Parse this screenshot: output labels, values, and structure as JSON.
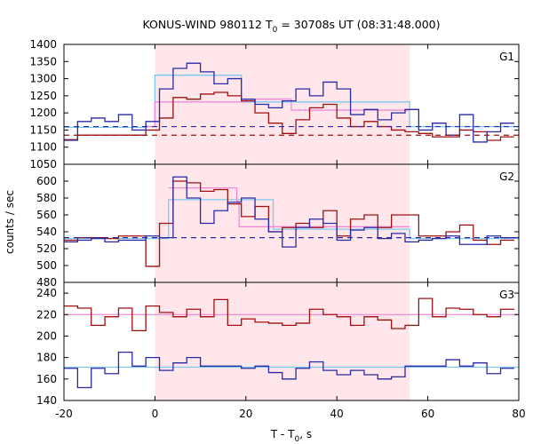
{
  "chart_data": {
    "type": "step",
    "title_main": "KONUS-WIND 980112 T",
    "title_sub": "0",
    "title_rest": " = 30708s UT (08:31:48.000)",
    "xlabel_main": "T - T",
    "xlabel_sub": "0",
    "xlabel_rest": ", s",
    "ylabel": "counts / sec",
    "xlim": [
      -20,
      80
    ],
    "xticks": [
      -20,
      0,
      20,
      40,
      60,
      80
    ],
    "shaded_interval": [
      0,
      56
    ],
    "colors": {
      "red_series": "#a01010",
      "blue_series": "#2a2aa8",
      "light_blue_fit": "#7ec8ec",
      "pink_fit": "#f08ad8",
      "shade": "#ffe6ea"
    },
    "panels": [
      {
        "label": "G1",
        "ylim": [
          1050,
          1400
        ],
        "yticks": [
          1050,
          1100,
          1150,
          1200,
          1250,
          1300,
          1350,
          1400
        ],
        "red": {
          "edges": [
            -20,
            -17,
            -14,
            -11,
            -8,
            -5,
            -2,
            1,
            4,
            7,
            10,
            13,
            16,
            19,
            22,
            25,
            28,
            31,
            34,
            37,
            40,
            43,
            46,
            49,
            52,
            55,
            58,
            61,
            64,
            67,
            70,
            73,
            76,
            79
          ],
          "values": [
            1122,
            1135,
            1135,
            1135,
            1135,
            1135,
            1150,
            1185,
            1245,
            1240,
            1255,
            1260,
            1250,
            1235,
            1200,
            1170,
            1140,
            1180,
            1215,
            1225,
            1185,
            1160,
            1175,
            1160,
            1150,
            1145,
            1140,
            1130,
            1130,
            1150,
            1145,
            1120,
            1130
          ]
        },
        "blue": {
          "edges": [
            -20,
            -17,
            -14,
            -11,
            -8,
            -5,
            -2,
            1,
            4,
            7,
            10,
            13,
            16,
            19,
            22,
            25,
            28,
            31,
            34,
            37,
            40,
            43,
            46,
            49,
            52,
            55,
            58,
            61,
            64,
            67,
            70,
            73,
            76,
            79
          ],
          "values": [
            1120,
            1175,
            1185,
            1175,
            1195,
            1150,
            1175,
            1270,
            1330,
            1345,
            1320,
            1285,
            1300,
            1240,
            1225,
            1215,
            1235,
            1270,
            1250,
            1290,
            1270,
            1195,
            1210,
            1180,
            1200,
            1210,
            1150,
            1170,
            1135,
            1195,
            1115,
            1145,
            1170
          ]
        },
        "light_blue_fit": {
          "edges": [
            -20,
            -2,
            0,
            19,
            56,
            80
          ],
          "values": [
            1158,
            1160,
            1310,
            1232,
            1160
          ]
        },
        "pink_fit": {
          "edges": [
            -2,
            0,
            20,
            30,
            56
          ],
          "values": [
            1160,
            1232,
            1240,
            1208
          ]
        },
        "blue_dashed_level": 1160,
        "red_dashed_level": 1135
      },
      {
        "label": "G2",
        "ylim": [
          480,
          620
        ],
        "yticks": [
          480,
          500,
          520,
          540,
          560,
          580,
          600
        ],
        "red": {
          "edges": [
            -20,
            -17,
            -14,
            -11,
            -8,
            -5,
            -2,
            1,
            4,
            7,
            10,
            13,
            16,
            19,
            22,
            25,
            28,
            31,
            34,
            37,
            40,
            43,
            46,
            49,
            52,
            55,
            58,
            61,
            64,
            67,
            70,
            73,
            76,
            79
          ],
          "values": [
            530,
            533,
            533,
            532,
            535,
            535,
            499,
            550,
            600,
            598,
            588,
            590,
            573,
            558,
            570,
            540,
            545,
            550,
            545,
            565,
            535,
            555,
            560,
            545,
            560,
            560,
            535,
            535,
            540,
            548,
            530,
            525,
            530
          ]
        },
        "blue": {
          "edges": [
            -20,
            -17,
            -14,
            -11,
            -8,
            -5,
            -2,
            1,
            4,
            7,
            10,
            13,
            16,
            19,
            22,
            25,
            28,
            31,
            34,
            37,
            40,
            43,
            46,
            49,
            52,
            55,
            58,
            61,
            64,
            67,
            70,
            73,
            76,
            79
          ],
          "values": [
            528,
            530,
            532,
            528,
            530,
            530,
            535,
            533,
            605,
            580,
            550,
            565,
            575,
            580,
            555,
            540,
            522,
            545,
            555,
            550,
            530,
            542,
            545,
            532,
            538,
            528,
            530,
            532,
            535,
            525,
            525,
            535,
            533
          ]
        },
        "light_blue_fit": {
          "edges": [
            -20,
            3,
            26,
            56,
            80
          ],
          "values": [
            532,
            578,
            543,
            532
          ]
        },
        "pink_fit": {
          "edges": [
            3,
            18,
            18.5,
            56
          ],
          "values": [
            592,
            576,
            546
          ]
        },
        "blue_dashed_level": 533
      },
      {
        "label": "G3",
        "ylim": [
          140,
          250
        ],
        "yticks": [
          140,
          160,
          180,
          200,
          220,
          240
        ],
        "red": {
          "edges": [
            -20,
            -17,
            -14,
            -11,
            -8,
            -5,
            -2,
            1,
            4,
            7,
            10,
            13,
            16,
            19,
            22,
            25,
            28,
            31,
            34,
            37,
            40,
            43,
            46,
            49,
            52,
            55,
            58,
            61,
            64,
            67,
            70,
            73,
            76,
            79
          ],
          "values": [
            228,
            226,
            210,
            218,
            226,
            205,
            228,
            222,
            218,
            225,
            218,
            234,
            210,
            216,
            213,
            212,
            210,
            212,
            225,
            220,
            218,
            210,
            218,
            215,
            207,
            210,
            235,
            218,
            226,
            225,
            220,
            218,
            225
          ]
        },
        "blue": {
          "edges": [
            -20,
            -17,
            -14,
            -11,
            -8,
            -5,
            -2,
            1,
            4,
            7,
            10,
            13,
            16,
            19,
            22,
            25,
            28,
            31,
            34,
            37,
            40,
            43,
            46,
            49,
            52,
            55,
            58,
            61,
            64,
            67,
            70,
            73,
            76,
            79
          ],
          "values": [
            170,
            152,
            170,
            165,
            185,
            172,
            180,
            168,
            175,
            180,
            172,
            172,
            172,
            170,
            172,
            166,
            160,
            170,
            176,
            168,
            164,
            168,
            164,
            160,
            162,
            172,
            172,
            172,
            178,
            172,
            175,
            165,
            170
          ]
        },
        "light_blue_fit": {
          "edges": [
            -20,
            80
          ],
          "values": [
            171
          ]
        },
        "pink_fit": {
          "edges": [
            -20,
            80
          ],
          "values": [
            220
          ]
        }
      }
    ]
  }
}
